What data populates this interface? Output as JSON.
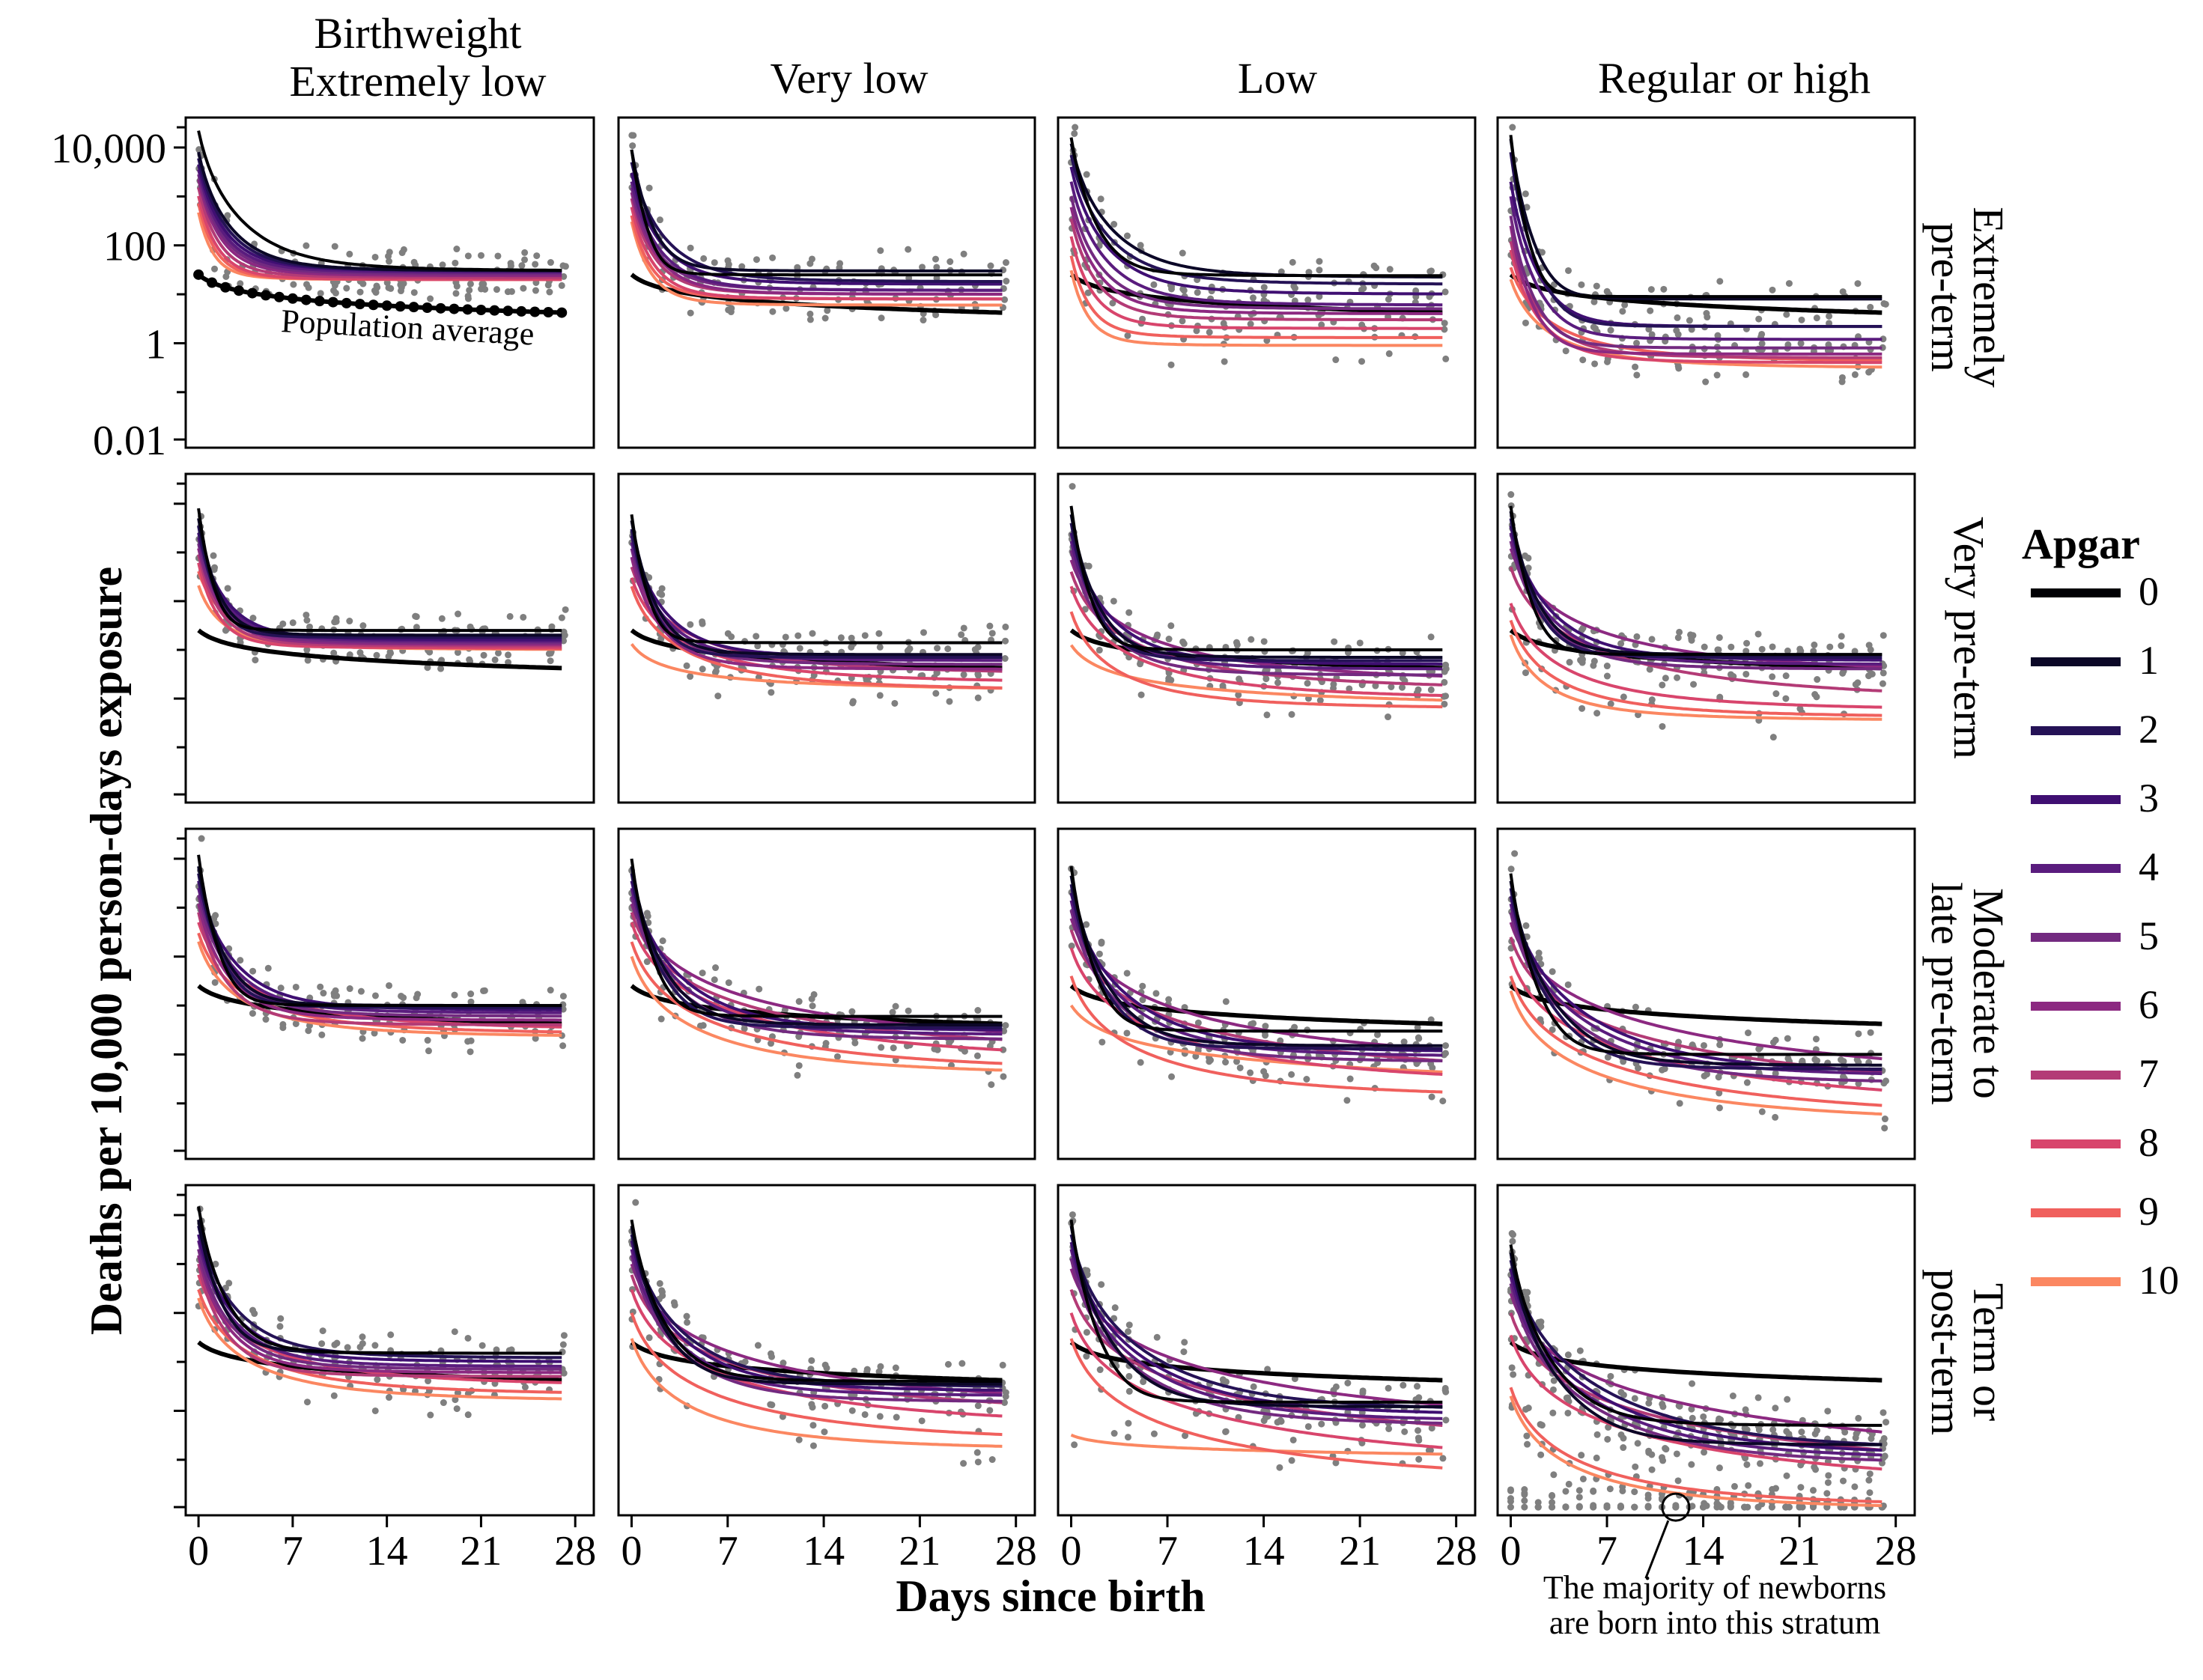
{
  "chart_data": {
    "type": "line",
    "facet_columns": {
      "variable": "Birthweight",
      "levels": [
        "Extremely low",
        "Very low",
        "Low",
        "Regular or high"
      ]
    },
    "facet_rows": [
      "Extremely pre-term",
      "Very pre-term",
      "Moderate to late pre-term",
      "Term or post-term"
    ],
    "xlabel": "Days since birth",
    "ylabel": "Deaths per 10,000 person-days exposure",
    "x_ticks": [
      0,
      7,
      14,
      21,
      28
    ],
    "xlim": [
      0,
      28
    ],
    "y_scale": "log10",
    "y_ticks": [
      0.01,
      1,
      100,
      10000
    ],
    "y_tick_labels": [
      "0.01",
      "1",
      "100",
      "10,000"
    ],
    "ylim": [
      0.01,
      30000
    ],
    "grid": false,
    "legend": {
      "title": "Apgar",
      "placement": "right",
      "levels": [
        "0",
        "1",
        "2",
        "3",
        "4",
        "5",
        "6",
        "7",
        "8",
        "9",
        "10"
      ],
      "colors": [
        "#000004",
        "#0b0727",
        "#251256",
        "#3f0f72",
        "#5a1c7e",
        "#732a80",
        "#8c2981",
        "#b33b76",
        "#d8456c",
        "#f0605d",
        "#fb8761"
      ]
    },
    "population_average": {
      "label": "Population average",
      "color": "#000000",
      "curve": {
        "a": 25,
        "b": 0.55,
        "c": 0.22
      }
    },
    "panels": [
      {
        "row": 0,
        "col": 0,
        "curves": [
          [
            22000,
            3,
            30
          ],
          [
            8000,
            3,
            30
          ],
          [
            6000,
            3,
            30
          ],
          [
            4500,
            3,
            30
          ],
          [
            3500,
            3,
            28
          ],
          [
            2800,
            3,
            26
          ],
          [
            2200,
            3,
            24
          ],
          [
            1500,
            3,
            22
          ],
          [
            1000,
            3,
            20
          ],
          [
            700,
            3,
            20
          ],
          [
            450,
            3,
            20
          ]
        ]
      },
      {
        "row": 0,
        "col": 1,
        "curves": [
          [
            9000,
            5,
            25
          ],
          [
            9000,
            4,
            30
          ],
          [
            5000,
            3,
            18
          ],
          [
            3000,
            3,
            16
          ],
          [
            2000,
            3,
            12
          ],
          [
            1500,
            3,
            12
          ],
          [
            1200,
            3,
            10
          ],
          [
            900,
            3,
            10
          ],
          [
            600,
            3,
            8
          ],
          [
            400,
            3,
            8
          ],
          [
            300,
            3,
            6
          ]
        ]
      },
      {
        "row": 0,
        "col": 2,
        "curves": [
          [
            16000,
            4,
            24
          ],
          [
            12000,
            3,
            22
          ],
          [
            7000,
            3,
            16
          ],
          [
            4000,
            3,
            10
          ],
          [
            2000,
            3,
            6
          ],
          [
            1000,
            3,
            5
          ],
          [
            600,
            3,
            4
          ],
          [
            350,
            3,
            3
          ],
          [
            150,
            3,
            2
          ],
          [
            60,
            3,
            1.3
          ],
          [
            30,
            3,
            0.9
          ]
        ]
      },
      {
        "row": 0,
        "col": 3,
        "curves": [
          [
            18000,
            6,
            9
          ],
          [
            15000,
            5,
            8
          ],
          [
            8000,
            5,
            2.2
          ],
          [
            2000,
            4,
            2.2
          ],
          [
            1000,
            4,
            1.2
          ],
          [
            400,
            4,
            0.8
          ],
          [
            250,
            4,
            0.6
          ],
          [
            120,
            3,
            0.5
          ],
          [
            80,
            3,
            0.4
          ],
          [
            35,
            2,
            0.4
          ],
          [
            20,
            2,
            0.3
          ]
        ]
      },
      {
        "row": 1,
        "col": 0,
        "curves": [
          [
            8000,
            5,
            25
          ],
          [
            5000,
            4,
            20
          ],
          [
            3500,
            4,
            18
          ],
          [
            2500,
            3,
            16
          ],
          [
            2000,
            3,
            15
          ],
          [
            1500,
            3,
            14
          ],
          [
            1200,
            3,
            13
          ],
          [
            900,
            3,
            12
          ],
          [
            600,
            3,
            11
          ],
          [
            400,
            2,
            10
          ],
          [
            200,
            2,
            10
          ]
        ]
      },
      {
        "row": 1,
        "col": 1,
        "curves": [
          [
            6000,
            5,
            14
          ],
          [
            4500,
            4,
            8
          ],
          [
            3000,
            4,
            7
          ],
          [
            2200,
            3,
            7
          ],
          [
            1600,
            3,
            6
          ],
          [
            1200,
            3,
            5
          ],
          [
            800,
            3,
            4
          ],
          [
            500,
            2,
            3
          ],
          [
            300,
            2,
            2
          ],
          [
            200,
            2,
            1.4
          ],
          [
            12,
            1,
            1.2
          ]
        ]
      },
      {
        "row": 1,
        "col": 2,
        "curves": [
          [
            9000,
            5,
            10
          ],
          [
            6000,
            4,
            7
          ],
          [
            4000,
            4,
            6
          ],
          [
            2500,
            3,
            5
          ],
          [
            1700,
            3,
            4
          ],
          [
            1100,
            3,
            3
          ],
          [
            700,
            2,
            2
          ],
          [
            400,
            2,
            1.4
          ],
          [
            200,
            2,
            0.9
          ],
          [
            60,
            2,
            0.6
          ],
          [
            12,
            1,
            0.5
          ]
        ]
      },
      {
        "row": 1,
        "col": 3,
        "curves": [
          [
            9000,
            5,
            8
          ],
          [
            7000,
            4,
            8
          ],
          [
            5000,
            4,
            7
          ],
          [
            3500,
            3,
            6
          ],
          [
            2500,
            3,
            5
          ],
          [
            1700,
            3,
            4
          ],
          [
            1200,
            2,
            3
          ],
          [
            500,
            2,
            0.8
          ],
          [
            90,
            2,
            0.55
          ],
          [
            40,
            2,
            0.4
          ],
          [
            20,
            2,
            0.35
          ]
        ]
      },
      {
        "row": 2,
        "col": 0,
        "curves": [
          [
            12000,
            5,
            10
          ],
          [
            7000,
            4,
            10
          ],
          [
            5000,
            4,
            9
          ],
          [
            3500,
            3,
            8
          ],
          [
            2500,
            3,
            7
          ],
          [
            1800,
            3,
            6
          ],
          [
            1200,
            3,
            5
          ],
          [
            800,
            3,
            4
          ],
          [
            500,
            2,
            3
          ],
          [
            300,
            2,
            2.5
          ],
          [
            200,
            2,
            2.2
          ]
        ]
      },
      {
        "row": 2,
        "col": 1,
        "curves": [
          [
            10000,
            5,
            6
          ],
          [
            7000,
            4,
            4
          ],
          [
            5000,
            4,
            3.5
          ],
          [
            3500,
            3,
            3
          ],
          [
            2500,
            3,
            2.5
          ],
          [
            1700,
            3,
            2
          ],
          [
            1200,
            2,
            1.4
          ],
          [
            800,
            2,
            1
          ],
          [
            500,
            2,
            0.6
          ],
          [
            200,
            2,
            0.4
          ],
          [
            100,
            2,
            0.35
          ]
        ]
      },
      {
        "row": 2,
        "col": 2,
        "curves": [
          [
            7000,
            5,
            3
          ],
          [
            4500,
            4,
            1.5
          ],
          [
            3000,
            4,
            1.3
          ],
          [
            2000,
            3,
            1.1
          ],
          [
            1400,
            3,
            0.9
          ],
          [
            900,
            3,
            0.7
          ],
          [
            600,
            2,
            0.5
          ],
          [
            350,
            2,
            0.3
          ],
          [
            150,
            2,
            0.2
          ],
          [
            40,
            2,
            0.12
          ],
          [
            10,
            1,
            0.08
          ]
        ]
      },
      {
        "row": 2,
        "col": 3,
        "curves": [
          [
            5000,
            5,
            1
          ],
          [
            3500,
            4,
            0.6
          ],
          [
            2500,
            4,
            0.5
          ],
          [
            1700,
            3,
            0.4
          ],
          [
            1200,
            3,
            0.35
          ],
          [
            800,
            3,
            0.25
          ],
          [
            500,
            2,
            0.18
          ],
          [
            250,
            2,
            0.1
          ],
          [
            100,
            2,
            0.06
          ],
          [
            40,
            2,
            0.04
          ],
          [
            20,
            2,
            0.035
          ]
        ]
      },
      {
        "row": 3,
        "col": 0,
        "curves": [
          [
            15000,
            4,
            15
          ],
          [
            8000,
            4,
            15
          ],
          [
            6000,
            3,
            12
          ],
          [
            4000,
            3,
            10
          ],
          [
            3000,
            3,
            8
          ],
          [
            2000,
            3,
            7
          ],
          [
            1500,
            3,
            6
          ],
          [
            1000,
            3,
            5
          ],
          [
            600,
            2,
            3
          ],
          [
            300,
            2,
            2
          ],
          [
            200,
            2,
            1.5
          ]
        ]
      },
      {
        "row": 3,
        "col": 1,
        "curves": [
          [
            8000,
            4,
            4
          ],
          [
            6000,
            4,
            3.5
          ],
          [
            4000,
            3,
            3
          ],
          [
            3000,
            3,
            2.5
          ],
          [
            2000,
            3,
            2
          ],
          [
            1500,
            3,
            1.5
          ],
          [
            1000,
            2,
            1
          ],
          [
            600,
            2,
            0.7
          ],
          [
            300,
            2,
            0.4
          ],
          [
            100,
            2,
            0.2
          ],
          [
            30,
            2,
            0.15
          ]
        ]
      },
      {
        "row": 3,
        "col": 2,
        "curves": [
          [
            8000,
            5,
            1.5
          ],
          [
            6000,
            4,
            1.2
          ],
          [
            4000,
            3,
            1
          ],
          [
            2800,
            3,
            0.8
          ],
          [
            2000,
            3,
            0.6
          ],
          [
            1300,
            3,
            0.5
          ],
          [
            800,
            2,
            0.3
          ],
          [
            300,
            2,
            0.12
          ],
          [
            100,
            2,
            0.05
          ],
          [
            30,
            2,
            0.03
          ],
          [
            0.3,
            0.3,
            0.02
          ]
        ]
      },
      {
        "row": 3,
        "col": 3,
        "curves": [
          [
            2500,
            4,
            0.5
          ],
          [
            1700,
            4,
            0.2
          ],
          [
            1200,
            3,
            0.15
          ],
          [
            800,
            3,
            0.12
          ],
          [
            550,
            3,
            0.1
          ],
          [
            400,
            3,
            0.08
          ],
          [
            250,
            2,
            0.05
          ],
          [
            100,
            2,
            0.03
          ],
          [
            35,
            2,
            0.02
          ],
          [
            3,
            2,
            0.01
          ],
          [
            2,
            2,
            0.009
          ]
        ]
      }
    ]
  },
  "annotation": {
    "text_line1": "The majority of newborns",
    "text_line2": "are born into this stratum",
    "panel": {
      "row": 3,
      "col": 3
    },
    "target_day": 12,
    "target_value": 0.008
  }
}
